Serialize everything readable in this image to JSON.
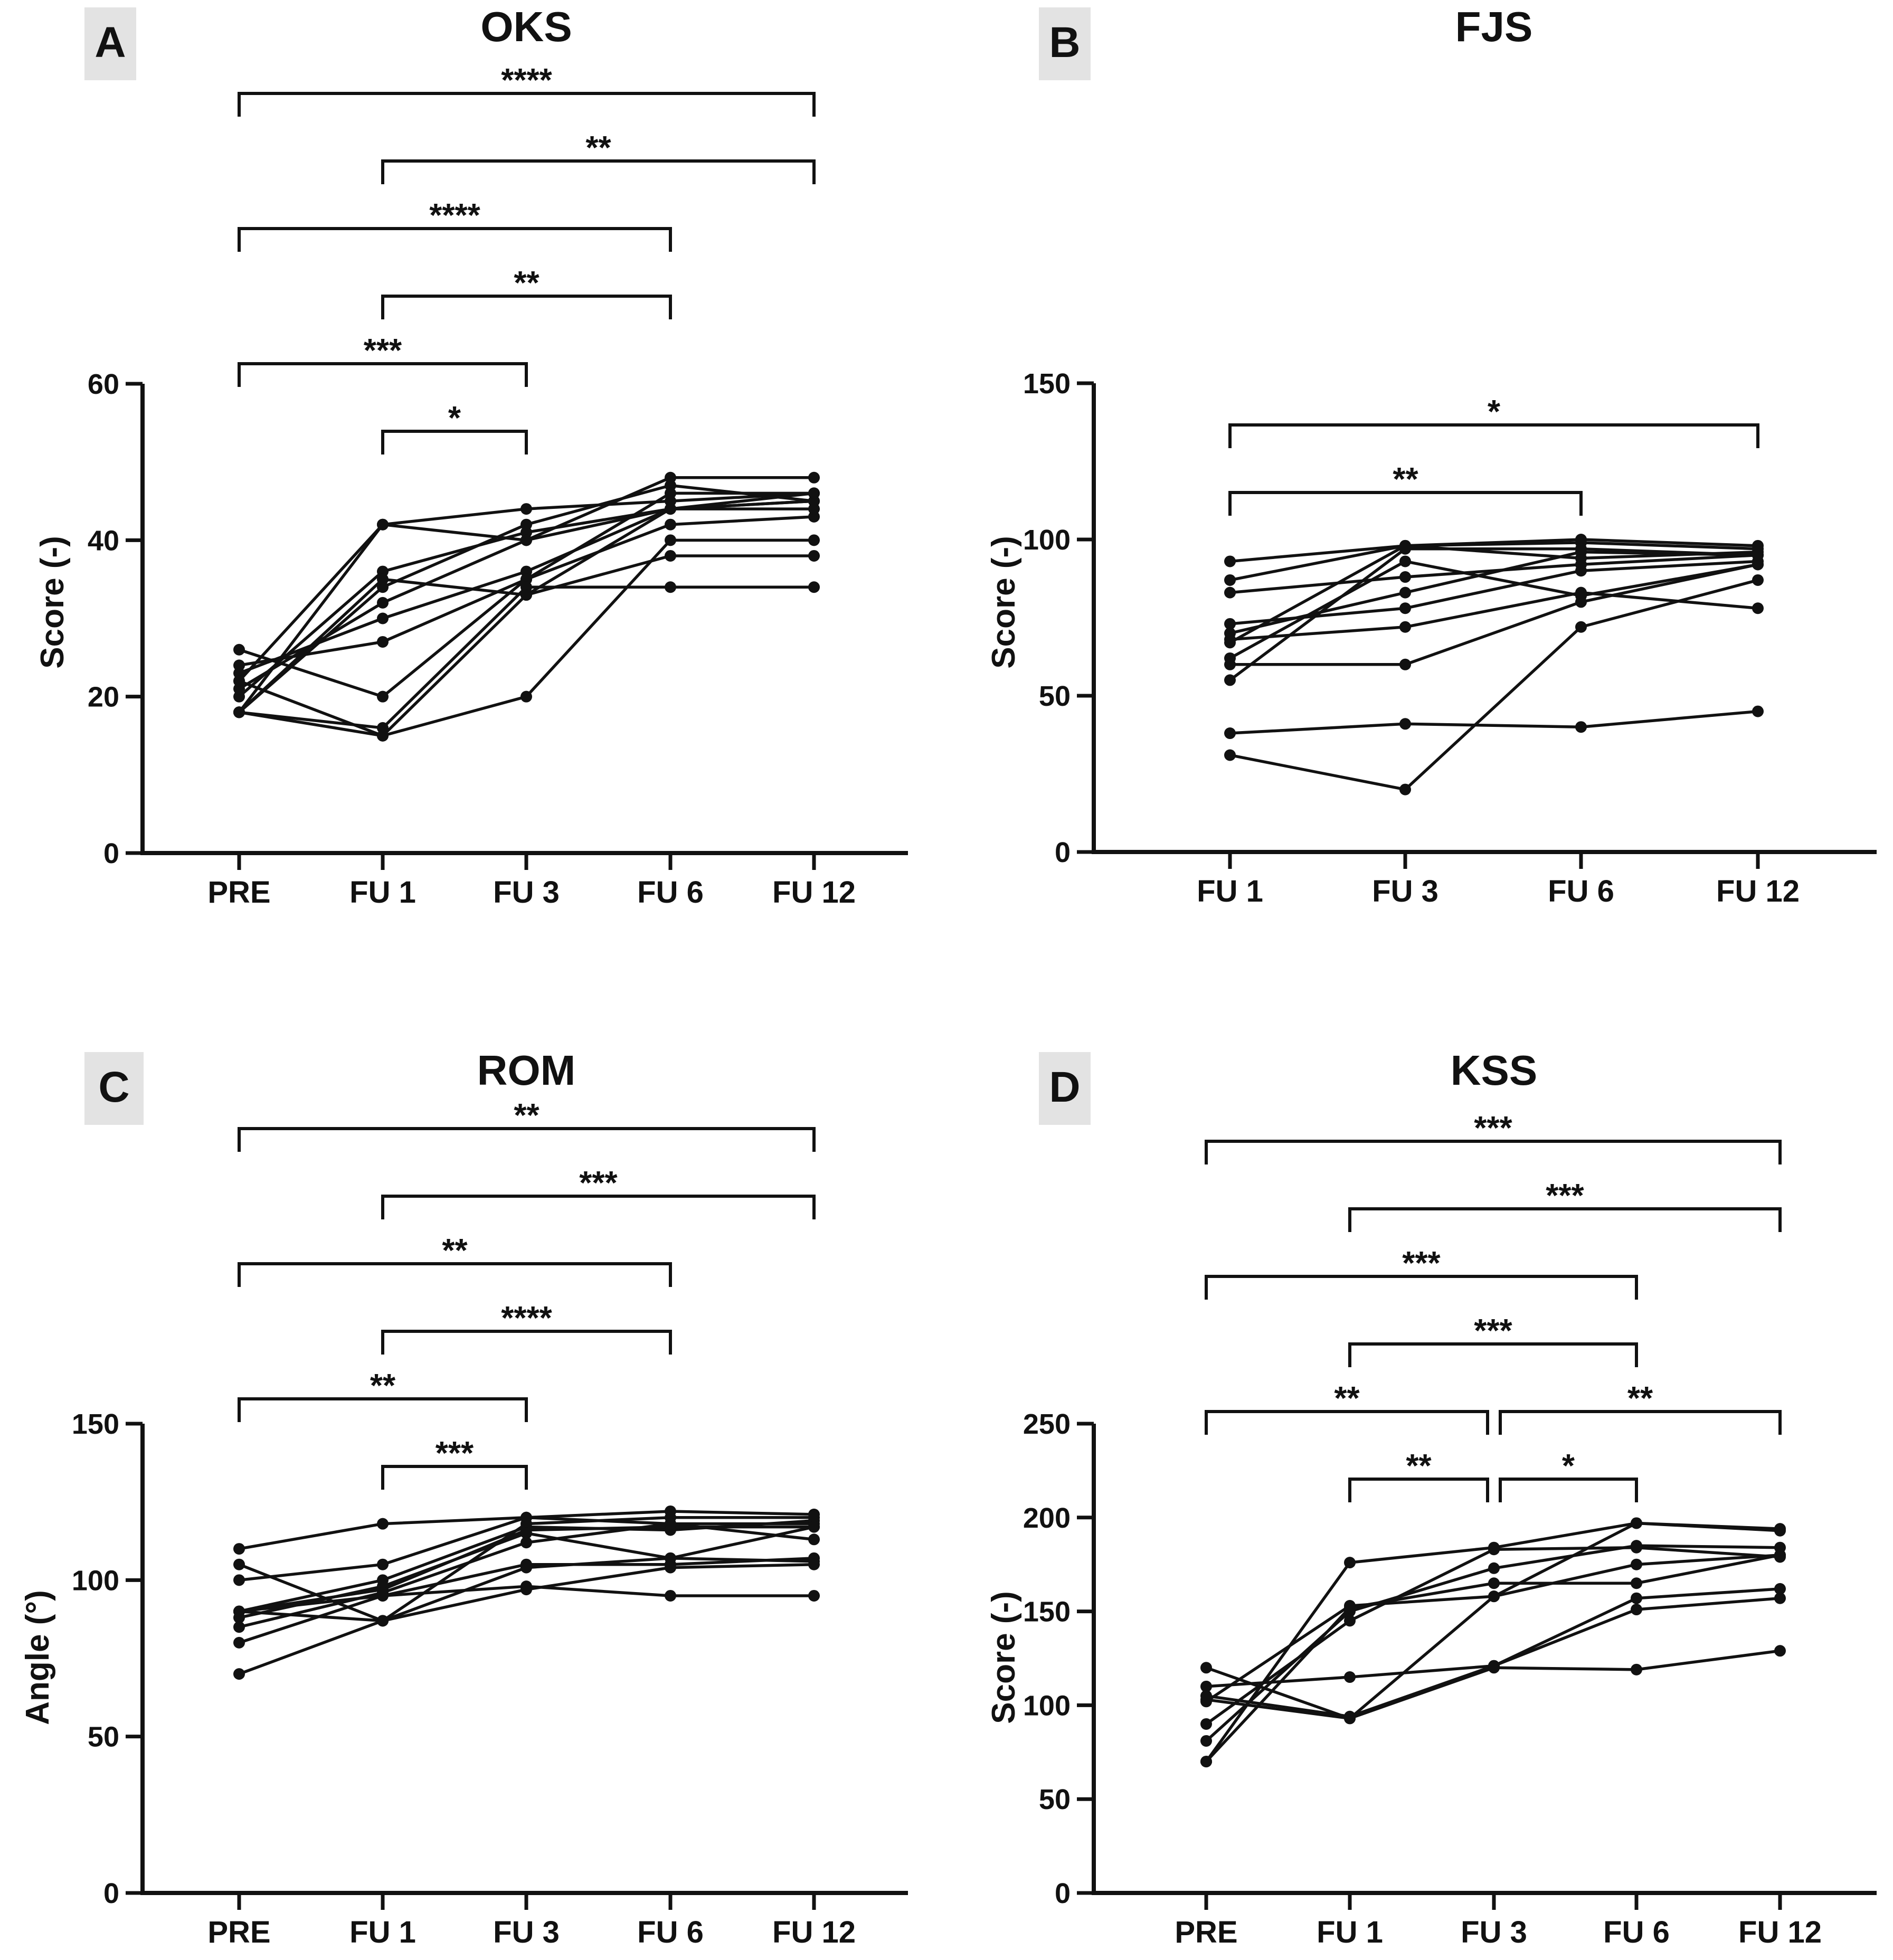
{
  "chart_data": [
    {
      "id": "A",
      "type": "line",
      "panel_label": "A",
      "title": "OKS",
      "ylabel": "Score (-)",
      "ylim": [
        0,
        60
      ],
      "yticks": [
        0,
        20,
        40,
        60
      ],
      "categories": [
        "PRE",
        "FU 1",
        "FU 3",
        "FU 6",
        "FU 12"
      ],
      "series": [
        {
          "values": [
            18,
            42,
            44,
            45,
            46
          ]
        },
        {
          "values": [
            22,
            42,
            40,
            44,
            45
          ]
        },
        {
          "values": [
            20,
            36,
            41,
            44,
            46
          ]
        },
        {
          "values": [
            18,
            34,
            42,
            47,
            45
          ]
        },
        {
          "values": [
            21,
            32,
            40,
            48,
            48
          ]
        },
        {
          "values": [
            23,
            30,
            36,
            44,
            45
          ]
        },
        {
          "values": [
            24,
            27,
            35,
            46,
            46
          ]
        },
        {
          "values": [
            26,
            20,
            35,
            42,
            43
          ]
        },
        {
          "values": [
            18,
            35,
            33,
            38,
            38
          ]
        },
        {
          "values": [
            18,
            16,
            34,
            34,
            34
          ]
        },
        {
          "values": [
            22,
            15,
            33,
            44,
            44
          ]
        },
        {
          "values": [
            18,
            15,
            20,
            40,
            40
          ]
        }
      ],
      "brackets": [
        {
          "from": 0,
          "to": 4,
          "label": "****",
          "level": 6
        },
        {
          "from": 1,
          "to": 4,
          "label": "**",
          "level": 5
        },
        {
          "from": 0,
          "to": 3,
          "label": "****",
          "level": 4
        },
        {
          "from": 1,
          "to": 3,
          "label": "**",
          "level": 3
        },
        {
          "from": 0,
          "to": 2,
          "label": "***",
          "level": 2
        },
        {
          "from": 1,
          "to": 2,
          "label": "*",
          "level": 1
        }
      ]
    },
    {
      "id": "B",
      "type": "line",
      "panel_label": "B",
      "title": "FJS",
      "ylabel": "Score (-)",
      "ylim": [
        0,
        150
      ],
      "yticks": [
        0,
        50,
        100,
        150
      ],
      "categories": [
        "FU 1",
        "FU 3",
        "FU 6",
        "FU 12"
      ],
      "series": [
        {
          "values": [
            93,
            98,
            99,
            97
          ]
        },
        {
          "values": [
            87,
            98,
            100,
            98
          ]
        },
        {
          "values": [
            83,
            88,
            92,
            95
          ]
        },
        {
          "values": [
            73,
            78,
            90,
            93
          ]
        },
        {
          "values": [
            70,
            83,
            96,
            95
          ]
        },
        {
          "values": [
            68,
            72,
            83,
            78
          ]
        },
        {
          "values": [
            67,
            98,
            94,
            96
          ]
        },
        {
          "values": [
            62,
            93,
            82,
            92
          ]
        },
        {
          "values": [
            60,
            60,
            80,
            92
          ]
        },
        {
          "values": [
            55,
            97,
            97,
            95
          ]
        },
        {
          "values": [
            38,
            41,
            40,
            45
          ]
        },
        {
          "values": [
            31,
            20,
            72,
            87
          ]
        }
      ],
      "brackets": [
        {
          "from": 0,
          "to": 3,
          "label": "*",
          "level": 2
        },
        {
          "from": 0,
          "to": 2,
          "label": "**",
          "level": 1
        }
      ]
    },
    {
      "id": "C",
      "type": "line",
      "panel_label": "C",
      "title": "ROM",
      "ylabel": "Angle (°)",
      "ylim": [
        0,
        150
      ],
      "yticks": [
        0,
        50,
        100,
        150
      ],
      "categories": [
        "PRE",
        "FU 1",
        "FU 3",
        "FU 6",
        "FU 12"
      ],
      "series": [
        {
          "values": [
            110,
            118,
            120,
            122,
            121
          ]
        },
        {
          "values": [
            105,
            87,
            118,
            120,
            120
          ]
        },
        {
          "values": [
            100,
            105,
            120,
            118,
            118
          ]
        },
        {
          "values": [
            90,
            100,
            117,
            116,
            119
          ]
        },
        {
          "values": [
            90,
            97,
            116,
            117,
            117
          ]
        },
        {
          "values": [
            88,
            98,
            115,
            107,
            117
          ]
        },
        {
          "values": [
            85,
            96,
            112,
            118,
            113
          ]
        },
        {
          "values": [
            80,
            95,
            105,
            105,
            107
          ]
        },
        {
          "values": [
            70,
            87,
            104,
            107,
            106
          ]
        },
        {
          "values": [
            90,
            87,
            97,
            104,
            105
          ]
        },
        {
          "values": [
            90,
            95,
            98,
            95,
            95
          ]
        }
      ],
      "brackets": [
        {
          "from": 0,
          "to": 4,
          "label": "**",
          "level": 6
        },
        {
          "from": 1,
          "to": 4,
          "label": "***",
          "level": 5
        },
        {
          "from": 0,
          "to": 3,
          "label": "**",
          "level": 4
        },
        {
          "from": 1,
          "to": 3,
          "label": "****",
          "level": 3
        },
        {
          "from": 0,
          "to": 2,
          "label": "**",
          "level": 2
        },
        {
          "from": 1,
          "to": 2,
          "label": "***",
          "level": 1
        }
      ]
    },
    {
      "id": "D",
      "type": "line",
      "panel_label": "D",
      "title": "KSS",
      "ylabel": "Score (-)",
      "ylim": [
        0,
        250
      ],
      "yticks": [
        0,
        50,
        100,
        150,
        200,
        250
      ],
      "categories": [
        "PRE",
        "FU 1",
        "FU 3",
        "FU 6",
        "FU 12"
      ],
      "series": [
        {
          "values": [
            120,
            93,
            120,
            119,
            129
          ]
        },
        {
          "values": [
            110,
            115,
            121,
            151,
            157
          ]
        },
        {
          "values": [
            105,
            94,
            121,
            157,
            162
          ]
        },
        {
          "values": [
            103,
            93,
            158,
            197,
            194
          ]
        },
        {
          "values": [
            102,
            153,
            158,
            175,
            180
          ]
        },
        {
          "values": [
            90,
            145,
            183,
            184,
            179
          ]
        },
        {
          "values": [
            81,
            150,
            173,
            185,
            184
          ]
        },
        {
          "values": [
            70,
            152,
            165,
            165,
            180
          ]
        },
        {
          "values": [
            70,
            176,
            184,
            197,
            193
          ]
        }
      ],
      "brackets": [
        {
          "from": 0,
          "to": 4,
          "label": "***",
          "level": 5
        },
        {
          "from": 1,
          "to": 4,
          "label": "***",
          "level": 4
        },
        {
          "from": 0,
          "to": 3,
          "label": "***",
          "level": 3
        },
        {
          "from": 1,
          "to": 3,
          "label": "***",
          "level": 2
        },
        {
          "from": 0,
          "to": 2,
          "label": "**",
          "level": 1
        },
        {
          "from": 2,
          "to": 4,
          "label": "**",
          "level": 1
        },
        {
          "from": 1,
          "to": 2,
          "label": "**",
          "level": 0
        },
        {
          "from": 2,
          "to": 3,
          "label": "*",
          "level": 0
        }
      ]
    }
  ]
}
